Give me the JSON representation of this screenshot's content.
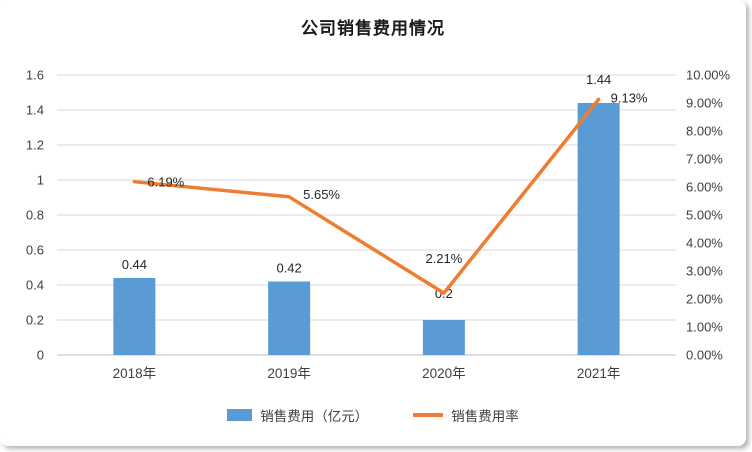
{
  "chart_data": {
    "type": "combo",
    "title": "公司销售费用情况",
    "categories": [
      "2018年",
      "2019年",
      "2020年",
      "2021年"
    ],
    "series": [
      {
        "name": "销售费用（亿元）",
        "type": "bar",
        "axis": "left",
        "color": "#5B9BD5",
        "values": [
          0.44,
          0.42,
          0.2,
          1.44
        ],
        "labels": [
          "0.44",
          "0.42",
          "0.2",
          "1.44"
        ]
      },
      {
        "name": "销售费用率",
        "type": "line",
        "axis": "right",
        "color": "#ED7D31",
        "values": [
          6.19,
          5.65,
          2.21,
          9.13
        ],
        "labels": [
          "6.19%",
          "5.65%",
          "2.21%",
          "9.13%"
        ]
      }
    ],
    "left_axis": {
      "min": 0,
      "max": 1.6,
      "step": 0.2,
      "ticks": [
        "0",
        "0.2",
        "0.4",
        "0.6",
        "0.8",
        "1",
        "1.2",
        "1.4",
        "1.6"
      ]
    },
    "right_axis": {
      "min": 0,
      "max": 10,
      "step": 1,
      "ticks": [
        "0.00%",
        "1.00%",
        "2.00%",
        "3.00%",
        "4.00%",
        "5.00%",
        "6.00%",
        "7.00%",
        "8.00%",
        "9.00%",
        "10.00%"
      ]
    },
    "grid": true,
    "legend_position": "bottom"
  },
  "colors": {
    "grid": "#D9D9D9",
    "axis_line": "#BFBFBF"
  }
}
